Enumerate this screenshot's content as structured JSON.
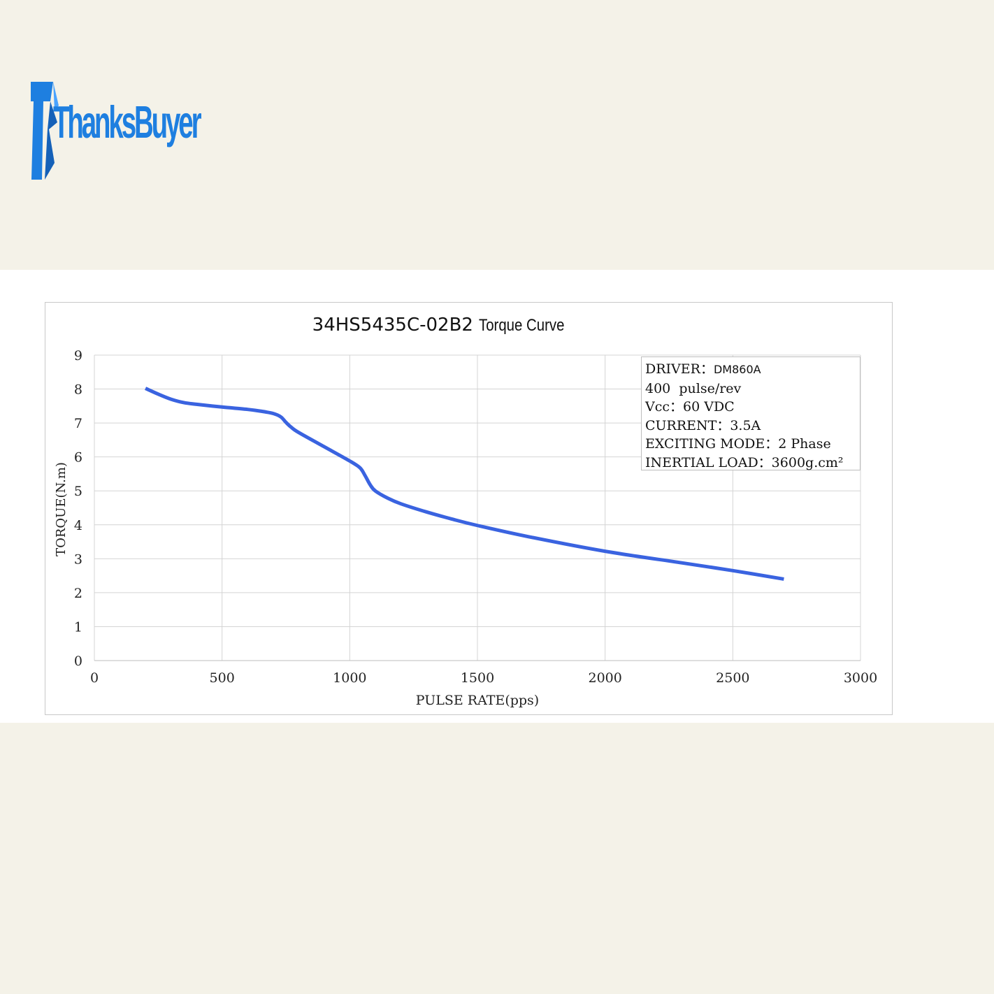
{
  "brand": {
    "logo_text": "ThanksBuyer",
    "colors": {
      "logo_blue": "#1e7fe0",
      "logo_blue_dark": "#1561b8"
    }
  },
  "chart_data": {
    "type": "line",
    "title": "34HS5435C-02B2",
    "title_suffix": "Torque Curve",
    "xlabel": "PULSE RATE(pps)",
    "ylabel": "TORQUE(N.m)",
    "xlim": [
      0,
      3000
    ],
    "ylim": [
      0,
      9
    ],
    "xticks": [
      0,
      500,
      1000,
      1500,
      2000,
      2500,
      3000
    ],
    "yticks": [
      0,
      1,
      2,
      3,
      4,
      5,
      6,
      7,
      8,
      9
    ],
    "grid": true,
    "series": [
      {
        "color": "#3a63e0",
        "x": [
          200,
          250,
          300,
          350,
          400,
          500,
          600,
          650,
          700,
          730,
          750,
          770,
          800,
          900,
          1000,
          1040,
          1060,
          1080,
          1100,
          1150,
          1200,
          1300,
          1400,
          1500,
          1700,
          2000,
          2300,
          2500,
          2700
        ],
        "y": [
          8.02,
          7.85,
          7.7,
          7.6,
          7.55,
          7.47,
          7.4,
          7.35,
          7.28,
          7.18,
          7.02,
          6.88,
          6.72,
          6.3,
          5.88,
          5.68,
          5.45,
          5.18,
          5.0,
          4.78,
          4.62,
          4.38,
          4.17,
          3.98,
          3.65,
          3.22,
          2.88,
          2.65,
          2.4
        ]
      }
    ]
  },
  "spec": {
    "driver_label": "DRIVER：",
    "driver_value": "DM860A",
    "line2": "400  pulse/rev",
    "line3": "Vcc：60 VDC",
    "line4": "CURRENT：3.5A",
    "line5": "EXCITING MODE：2 Phase",
    "line6": "INERTIAL LOAD：3600g.cm²"
  }
}
